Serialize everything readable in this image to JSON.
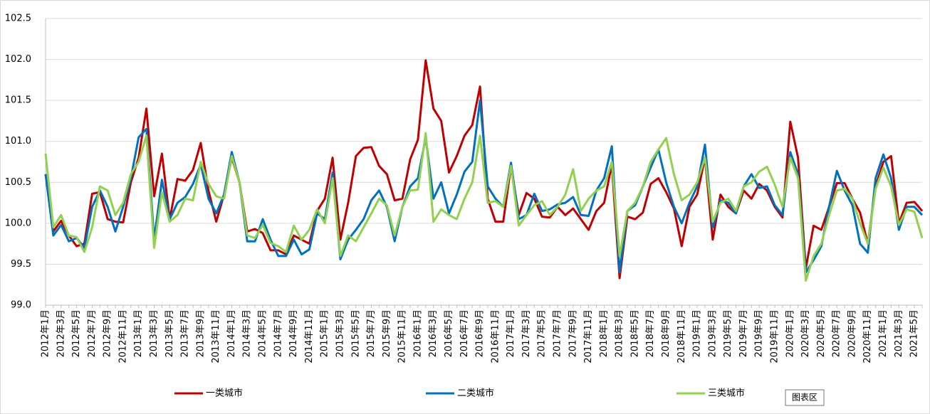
{
  "chart_data": {
    "type": "line",
    "categories": [
      "2012年1月",
      null,
      "2012年3月",
      null,
      "2012年5月",
      null,
      "2012年7月",
      null,
      "2012年9月",
      null,
      "2012年11月",
      null,
      "2013年1月",
      null,
      "2013年3月",
      null,
      "2013年5月",
      null,
      "2013年7月",
      null,
      "2013年9月",
      null,
      "2013年11月",
      null,
      "2014年1月",
      null,
      "2014年3月",
      null,
      "2014年5月",
      null,
      "2014年7月",
      null,
      "2014年9月",
      null,
      "2014年11月",
      null,
      "2015年1月",
      null,
      "2015年3月",
      null,
      "2015年5月",
      null,
      "2015年7月",
      null,
      "2015年9月",
      null,
      "2015年11月",
      null,
      "2016年1月",
      null,
      "2016年3月",
      null,
      "2016年5月",
      null,
      "2016年7月",
      null,
      "2016年9月",
      null,
      "2016年11月",
      null,
      "2017年1月",
      null,
      "2017年3月",
      null,
      "2017年5月",
      null,
      "2017年7月",
      null,
      "2017年9月",
      null,
      "2017年11月",
      null,
      "2018年1月",
      null,
      "2018年3月",
      null,
      "2018年5月",
      null,
      "2018年7月",
      null,
      "2018年9月",
      null,
      "2018年11月",
      null,
      "2019年1月",
      null,
      "2019年3月",
      null,
      "2019年5月",
      null,
      "2019年7月",
      null,
      "2019年9月",
      null,
      "2019年11月",
      null,
      "2020年1月",
      null,
      "2020年3月",
      null,
      "2020年5月",
      null,
      "2020年7月",
      null,
      "2020年9月",
      null,
      "2020年11月",
      null,
      "2021年1月",
      null,
      "2021年3月",
      null,
      "2021年5月",
      null
    ],
    "series": [
      {
        "name": "一类城市",
        "color": "#c00000",
        "values": [
          100.6,
          99.9,
          100.03,
          99.85,
          99.72,
          99.75,
          100.36,
          100.38,
          100.05,
          100.02,
          100.01,
          100.5,
          100.8,
          101.4,
          100.33,
          100.85,
          100.05,
          100.54,
          100.52,
          100.65,
          100.98,
          100.4,
          100.02,
          100.35,
          100.8,
          100.5,
          99.9,
          99.93,
          99.88,
          99.67,
          99.67,
          99.62,
          99.85,
          99.8,
          99.75,
          100.15,
          100.3,
          100.8,
          99.8,
          100.25,
          100.82,
          100.92,
          100.93,
          100.7,
          100.6,
          100.28,
          100.3,
          100.78,
          101.02,
          101.99,
          101.4,
          101.25,
          100.62,
          100.82,
          101.07,
          101.2,
          101.67,
          100.3,
          100.02,
          100.02,
          100.7,
          100.1,
          100.37,
          100.3,
          100.08,
          100.07,
          100.2,
          100.1,
          100.18,
          100.05,
          99.92,
          100.15,
          100.25,
          100.72,
          99.33,
          100.08,
          100.05,
          100.13,
          100.48,
          100.55,
          100.38,
          100.18,
          99.72,
          100.2,
          100.35,
          100.8,
          99.8,
          100.35,
          100.2,
          100.12,
          100.4,
          100.3,
          100.48,
          100.4,
          100.2,
          100.07,
          101.24,
          100.8,
          99.45,
          99.97,
          99.92,
          100.2,
          100.49,
          100.49,
          100.3,
          100.13,
          99.75,
          100.45,
          100.75,
          100.82,
          100.0,
          100.25,
          100.26,
          100.15
        ]
      },
      {
        "name": "二类城市",
        "color": "#0070c0",
        "values": [
          100.6,
          99.85,
          99.98,
          99.78,
          99.82,
          99.7,
          100.2,
          100.4,
          100.2,
          99.9,
          100.2,
          100.55,
          101.05,
          101.15,
          99.8,
          100.53,
          100.05,
          100.25,
          100.32,
          100.48,
          100.72,
          100.3,
          100.12,
          100.35,
          100.87,
          100.5,
          99.78,
          99.78,
          100.05,
          99.8,
          99.6,
          99.6,
          99.8,
          99.62,
          99.68,
          100.12,
          100.05,
          100.62,
          99.56,
          99.8,
          99.92,
          100.05,
          100.28,
          100.4,
          100.2,
          99.78,
          100.2,
          100.45,
          100.55,
          101.05,
          100.3,
          100.5,
          100.12,
          100.35,
          100.63,
          100.75,
          101.5,
          100.45,
          100.3,
          100.2,
          100.74,
          100.05,
          100.1,
          100.36,
          100.15,
          100.17,
          100.23,
          100.25,
          100.32,
          100.1,
          100.09,
          100.4,
          100.55,
          100.94,
          99.4,
          100.15,
          100.22,
          100.45,
          100.68,
          100.9,
          100.5,
          100.2,
          100.0,
          100.25,
          100.45,
          100.96,
          99.95,
          100.28,
          100.25,
          100.12,
          100.45,
          100.6,
          100.43,
          100.45,
          100.22,
          100.1,
          100.87,
          100.6,
          99.4,
          99.55,
          99.72,
          100.2,
          100.64,
          100.4,
          100.22,
          99.75,
          99.64,
          100.55,
          100.84,
          100.55,
          99.92,
          100.2,
          100.2,
          100.1
        ]
      },
      {
        "name": "三类城市",
        "color": "#92d050",
        "values": [
          100.85,
          99.95,
          100.1,
          99.85,
          99.83,
          99.65,
          99.95,
          100.45,
          100.4,
          100.1,
          100.25,
          100.6,
          100.75,
          101.07,
          99.7,
          100.38,
          100.02,
          100.1,
          100.3,
          100.28,
          100.75,
          100.48,
          100.33,
          100.3,
          100.82,
          100.5,
          99.85,
          99.82,
          99.98,
          99.76,
          99.72,
          99.65,
          99.97,
          99.8,
          99.92,
          100.17,
          100.0,
          100.55,
          99.6,
          99.85,
          99.78,
          99.95,
          100.12,
          100.3,
          100.22,
          99.85,
          100.2,
          100.4,
          100.41,
          101.1,
          100.02,
          100.17,
          100.1,
          100.05,
          100.3,
          100.5,
          101.07,
          100.25,
          100.27,
          100.2,
          100.7,
          99.97,
          100.1,
          100.22,
          100.27,
          100.1,
          100.2,
          100.35,
          100.66,
          100.15,
          100.3,
          100.4,
          100.45,
          100.75,
          99.6,
          100.15,
          100.25,
          100.45,
          100.75,
          100.9,
          101.04,
          100.6,
          100.28,
          100.35,
          100.5,
          100.8,
          100.02,
          100.25,
          100.3,
          100.15,
          100.45,
          100.5,
          100.63,
          100.69,
          100.47,
          100.2,
          100.8,
          100.55,
          99.3,
          99.6,
          99.75,
          100.1,
          100.4,
          100.42,
          100.3,
          100.0,
          99.75,
          100.42,
          100.68,
          100.45,
          99.98,
          100.17,
          100.14,
          99.82
        ]
      }
    ],
    "ylim": [
      99.0,
      102.5
    ],
    "yticks": [
      {
        "value": 99.0,
        "label": "99.0"
      },
      99.5,
      {
        "value": 100.0,
        "label": "100.0"
      },
      100.5,
      {
        "value": 101.0,
        "label": "101.0"
      },
      101.5,
      {
        "value": 102.0,
        "label": "102.0"
      },
      102.5
    ],
    "grid": true,
    "legend": "bottom",
    "tooltip": "图表区"
  }
}
